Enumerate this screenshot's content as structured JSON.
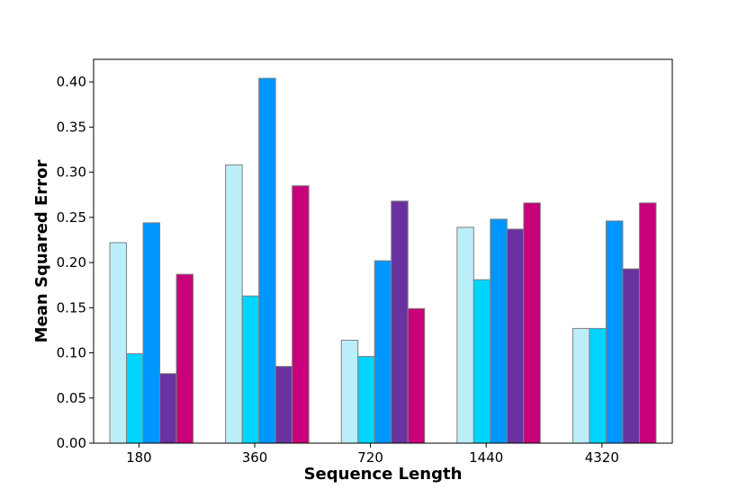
{
  "chart_data": {
    "type": "bar",
    "title": "",
    "xlabel": "Sequence Length",
    "ylabel": "Mean Squared Error",
    "categories": [
      "180",
      "360",
      "720",
      "1440",
      "4320"
    ],
    "ylim": [
      0,
      0.425
    ],
    "yticks": [
      "0.00",
      "0.05",
      "0.10",
      "0.15",
      "0.20",
      "0.25",
      "0.30",
      "0.35",
      "0.40"
    ],
    "grid": false,
    "legend": "none",
    "bar_edge_color": "#808080",
    "series": [
      {
        "color": "#bbeef8",
        "values": [
          0.222,
          0.308,
          0.114,
          0.239,
          0.127
        ]
      },
      {
        "color": "#00d4ff",
        "values": [
          0.099,
          0.163,
          0.096,
          0.181,
          0.127
        ]
      },
      {
        "color": "#0096ff",
        "values": [
          0.244,
          0.404,
          0.202,
          0.248,
          0.246
        ]
      },
      {
        "color": "#6a329f",
        "values": [
          0.077,
          0.085,
          0.268,
          0.237,
          0.193
        ]
      },
      {
        "color": "#c8007a",
        "values": [
          0.187,
          0.285,
          0.149,
          0.266,
          0.266
        ]
      }
    ]
  }
}
